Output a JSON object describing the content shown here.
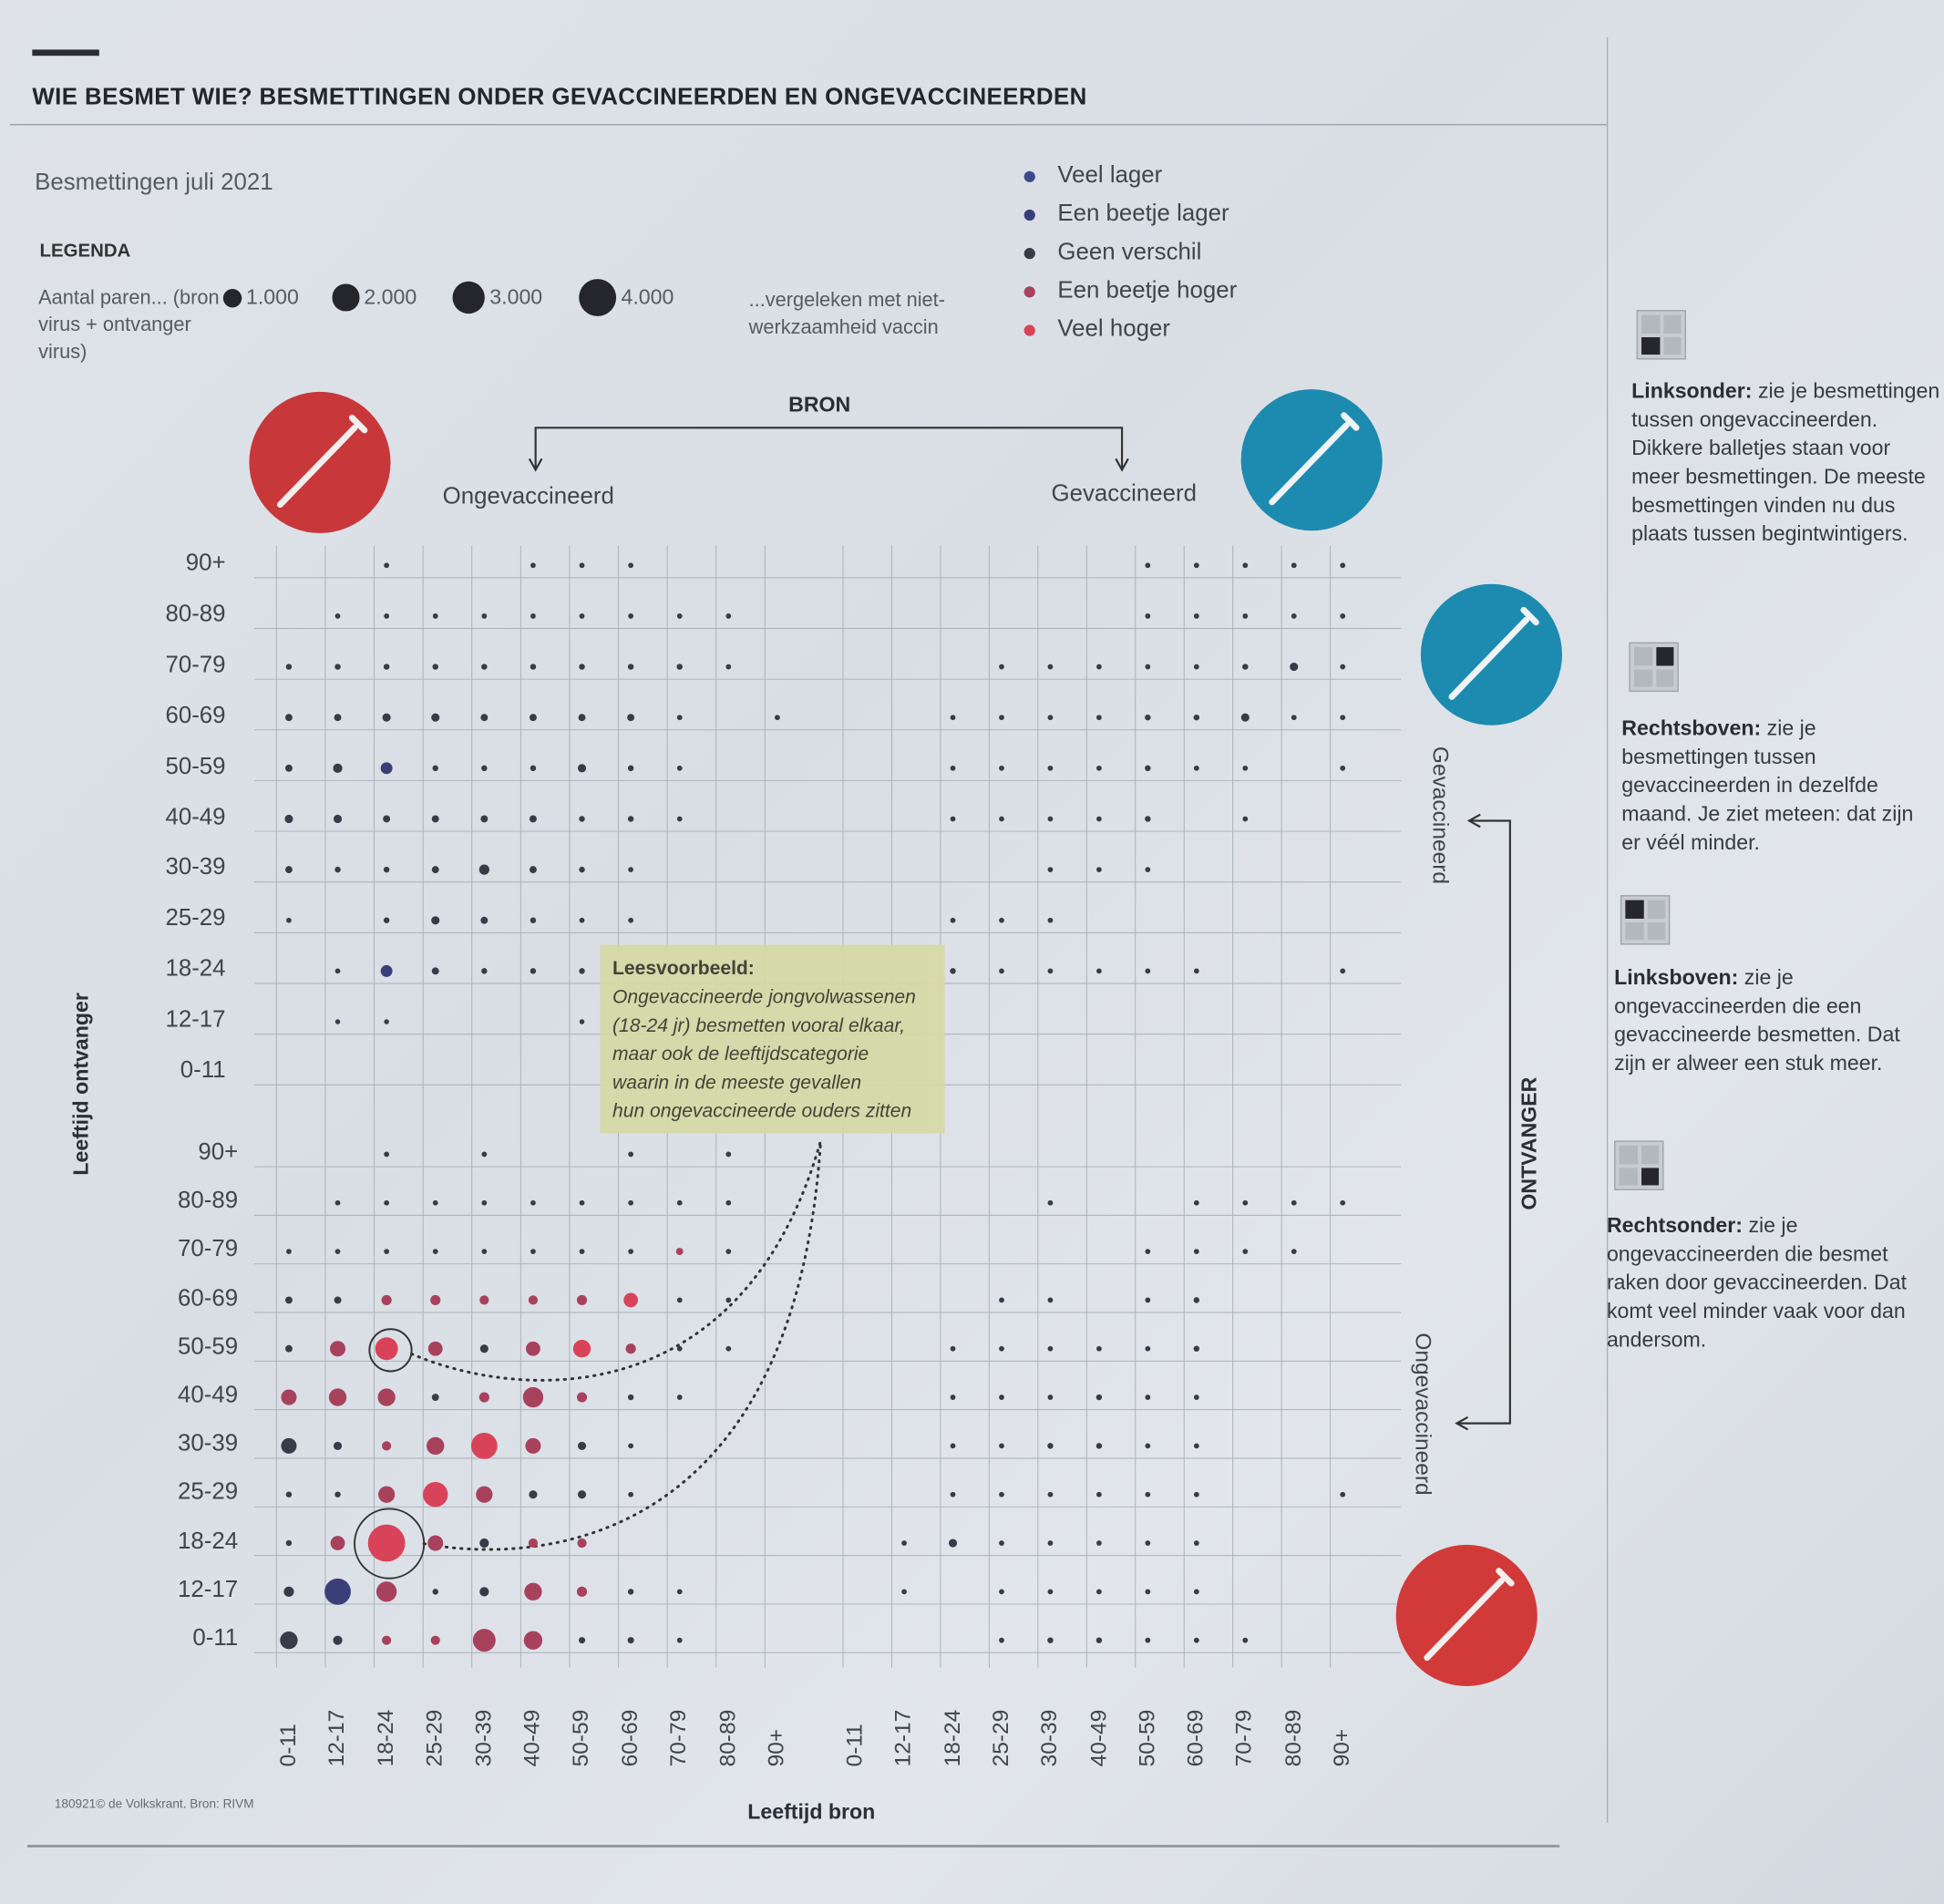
{
  "header": {
    "title": "WIE BESMET WIE? BESMETTINGEN ONDER GEVACCINEERDEN EN ONGEVACCINEERDEN",
    "subtitle": "Besmettingen juli 2021"
  },
  "legend": {
    "heading": "LEGENDA",
    "size_text": "Aantal paren... (bron virus + ontvanger virus)",
    "sizes": [
      {
        "label": "1.000",
        "value": 1000
      },
      {
        "label": "2.000",
        "value": 2000
      },
      {
        "label": "3.000",
        "value": 3000
      },
      {
        "label": "4.000",
        "value": 4000
      }
    ],
    "compare_text": "...vergeleken met niet-werkzaamheid vaccin",
    "categories": [
      {
        "label": "Veel lager",
        "color": "#3b4a8c"
      },
      {
        "label": "Een beetje lager",
        "color": "#3a3f78"
      },
      {
        "label": "Geen verschil",
        "color": "#3a3b48"
      },
      {
        "label": "Een beetje hoger",
        "color": "#a8425c"
      },
      {
        "label": "Veel hoger",
        "color": "#d9435a"
      }
    ]
  },
  "axes": {
    "source_title": "BRON",
    "source_unvacc": "Ongevaccineerd",
    "source_vacc": "Gevaccineerd",
    "recipient_title": "ONTVANGER",
    "recipient_vacc": "Gevaccineerd",
    "recipient_unvacc": "Ongevaccineerd",
    "ylabel": "Leeftijd ontvanger",
    "xlabel": "Leeftijd bron"
  },
  "note": {
    "heading": "Leesvoorbeeld:",
    "lines": [
      "Ongevaccineerde jongvolwassenen",
      "(18-24 jr) besmetten vooral elkaar,",
      "maar ook de leeftijdscategorie",
      "waarin in de meeste gevallen",
      "hun ongevaccineerde ouders zitten"
    ]
  },
  "side_panel": [
    {
      "title": "Linksonder:",
      "text": "zie je besmettingen tussen ongevaccineerden. Dikkere balletjes staan voor meer besmettingen. De meeste besmettingen vinden nu dus plaats tussen begintwintigers."
    },
    {
      "title": "Rechtsboven:",
      "text": "zie je besmettingen tussen gevaccineerden in dezelfde maand. Je ziet meteen: dat zijn er véél minder."
    },
    {
      "title": "Linksboven:",
      "text": "zie je ongevaccineerden die een gevaccineerde besmetten. Dat zijn er alweer een stuk meer."
    },
    {
      "title": "Rechtsonder:",
      "text": "zie je ongevaccineerden die besmet raken door gevaccineerden. Dat komt veel minder vaak voor dan andersom."
    }
  ],
  "credit": "180921© de Volkskrant. Bron: RIVM",
  "chart_data": {
    "type": "scatter",
    "title": "WIE BESMET WIE? BESMETTINGEN ONDER GEVACCINEERDEN EN ONGEVACCINEERDEN",
    "xlabel": "Leeftijd bron",
    "ylabel": "Leeftijd ontvanger",
    "age_groups": [
      "0-11",
      "12-17",
      "18-24",
      "25-29",
      "30-39",
      "40-49",
      "50-59",
      "60-69",
      "70-79",
      "80-89",
      "90+"
    ],
    "value_unit": "aantal paren (bron + ontvanger)",
    "note": "rows = recipient age (0-11 first), columns = source age (0-11 first); values approximate; category index into legend.categories",
    "quadrants": [
      {
        "name": "bron ongevaccineerd / ontvanger ongevaccineerd",
        "source": "Ongevaccineerd",
        "recipient": "Ongevaccineerd",
        "values": [
          [
            900,
            250,
            250,
            250,
            1500,
            1000,
            120,
            120,
            80,
            0,
            0
          ],
          [
            300,
            2000,
            1200,
            100,
            250,
            900,
            300,
            100,
            80,
            0,
            0
          ],
          [
            100,
            600,
            4000,
            700,
            250,
            250,
            250,
            0,
            0,
            0,
            0
          ],
          [
            100,
            100,
            800,
            1800,
            800,
            200,
            200,
            80,
            0,
            0,
            0
          ],
          [
            700,
            200,
            250,
            900,
            2000,
            700,
            200,
            80,
            0,
            0,
            0
          ],
          [
            700,
            900,
            900,
            150,
            300,
            1200,
            300,
            100,
            80,
            0,
            0
          ],
          [
            150,
            700,
            1500,
            600,
            200,
            600,
            900,
            300,
            80,
            80,
            0
          ],
          [
            150,
            150,
            300,
            300,
            250,
            250,
            300,
            600,
            80,
            80,
            0
          ],
          [
            80,
            80,
            80,
            80,
            80,
            80,
            80,
            80,
            150,
            80,
            0
          ],
          [
            0,
            80,
            80,
            80,
            80,
            80,
            80,
            80,
            80,
            80,
            0
          ],
          [
            0,
            0,
            80,
            0,
            80,
            0,
            0,
            80,
            0,
            80,
            0
          ]
        ],
        "categories": [
          [
            2,
            2,
            3,
            3,
            3,
            3,
            2,
            2,
            2,
            2,
            2
          ],
          [
            2,
            1,
            3,
            2,
            2,
            3,
            3,
            2,
            2,
            2,
            2
          ],
          [
            2,
            3,
            4,
            3,
            2,
            3,
            3,
            2,
            2,
            2,
            2
          ],
          [
            2,
            2,
            3,
            4,
            3,
            2,
            2,
            2,
            2,
            2,
            2
          ],
          [
            2,
            2,
            3,
            3,
            4,
            3,
            2,
            2,
            2,
            2,
            2
          ],
          [
            3,
            3,
            3,
            2,
            3,
            3,
            3,
            2,
            2,
            2,
            2
          ],
          [
            2,
            3,
            4,
            3,
            2,
            3,
            4,
            3,
            2,
            2,
            2
          ],
          [
            2,
            2,
            3,
            3,
            3,
            3,
            3,
            4,
            2,
            2,
            2
          ],
          [
            2,
            2,
            2,
            2,
            2,
            2,
            2,
            2,
            3,
            2,
            2
          ],
          [
            2,
            2,
            2,
            2,
            2,
            2,
            2,
            2,
            2,
            2,
            2
          ],
          [
            2,
            2,
            2,
            2,
            2,
            2,
            2,
            2,
            2,
            2,
            2
          ]
        ]
      },
      {
        "name": "bron ongevaccineerd / ontvanger gevaccineerd",
        "source": "Ongevaccineerd",
        "recipient": "Gevaccineerd",
        "values": [
          [
            0,
            0,
            0,
            0,
            0,
            0,
            0,
            0,
            0,
            0,
            0
          ],
          [
            0,
            60,
            60,
            0,
            0,
            0,
            60,
            0,
            0,
            0,
            0
          ],
          [
            0,
            80,
            400,
            150,
            100,
            100,
            100,
            80,
            0,
            0,
            0
          ],
          [
            80,
            0,
            100,
            200,
            150,
            100,
            80,
            80,
            0,
            0,
            0
          ],
          [
            150,
            100,
            100,
            150,
            300,
            150,
            100,
            80,
            0,
            0,
            0
          ],
          [
            200,
            200,
            150,
            150,
            150,
            150,
            100,
            100,
            80,
            0,
            0
          ],
          [
            150,
            250,
            400,
            100,
            100,
            100,
            200,
            100,
            80,
            0,
            0
          ],
          [
            150,
            150,
            200,
            200,
            150,
            150,
            150,
            150,
            80,
            0,
            80
          ],
          [
            100,
            100,
            100,
            100,
            100,
            100,
            100,
            100,
            100,
            80,
            0
          ],
          [
            0,
            80,
            80,
            80,
            80,
            80,
            80,
            80,
            80,
            80,
            0
          ],
          [
            0,
            0,
            80,
            0,
            0,
            80,
            80,
            80,
            0,
            0,
            0
          ]
        ],
        "default_category": 2,
        "exceptions": [
          [
            2,
            2,
            1
          ],
          [
            6,
            2,
            1
          ]
        ]
      },
      {
        "name": "bron gevaccineerd / ontvanger gevaccineerd",
        "source": "Gevaccineerd",
        "recipient": "Gevaccineerd",
        "values": [
          [
            0,
            0,
            0,
            0,
            0,
            0,
            0,
            0,
            0,
            0,
            0
          ],
          [
            0,
            0,
            0,
            0,
            0,
            0,
            0,
            0,
            0,
            0,
            0
          ],
          [
            0,
            0,
            100,
            80,
            80,
            80,
            80,
            80,
            0,
            0,
            80
          ],
          [
            0,
            0,
            80,
            80,
            80,
            0,
            0,
            0,
            0,
            0,
            0
          ],
          [
            0,
            0,
            0,
            0,
            80,
            80,
            80,
            0,
            0,
            0,
            0
          ],
          [
            0,
            0,
            80,
            80,
            80,
            80,
            100,
            0,
            80,
            0,
            0
          ],
          [
            0,
            0,
            80,
            80,
            80,
            80,
            100,
            80,
            80,
            0,
            80
          ],
          [
            0,
            0,
            80,
            80,
            80,
            80,
            100,
            100,
            200,
            80,
            80
          ],
          [
            0,
            0,
            0,
            80,
            80,
            80,
            80,
            80,
            100,
            200,
            80
          ],
          [
            0,
            0,
            0,
            0,
            0,
            0,
            80,
            80,
            80,
            80,
            80
          ],
          [
            0,
            0,
            0,
            0,
            0,
            0,
            80,
            80,
            80,
            80,
            80
          ]
        ],
        "default_category": 2,
        "exceptions": []
      },
      {
        "name": "bron gevaccineerd / ontvanger ongevaccineerd",
        "source": "Gevaccineerd",
        "recipient": "Ongevaccineerd",
        "values": [
          [
            0,
            0,
            0,
            80,
            100,
            100,
            80,
            80,
            80,
            0,
            0
          ],
          [
            0,
            80,
            0,
            80,
            80,
            80,
            80,
            80,
            0,
            0,
            0
          ],
          [
            0,
            80,
            200,
            80,
            80,
            80,
            80,
            80,
            0,
            0,
            0
          ],
          [
            0,
            0,
            80,
            80,
            80,
            80,
            80,
            80,
            0,
            0,
            80
          ],
          [
            0,
            0,
            80,
            80,
            100,
            100,
            80,
            80,
            0,
            0,
            0
          ],
          [
            0,
            0,
            80,
            80,
            80,
            100,
            80,
            80,
            0,
            0,
            0
          ],
          [
            0,
            0,
            80,
            80,
            80,
            80,
            80,
            100,
            0,
            0,
            0
          ],
          [
            0,
            0,
            0,
            80,
            80,
            0,
            80,
            100,
            0,
            0,
            0
          ],
          [
            0,
            0,
            0,
            0,
            0,
            0,
            80,
            80,
            80,
            80,
            0
          ],
          [
            0,
            0,
            0,
            0,
            80,
            0,
            0,
            80,
            80,
            80,
            80
          ],
          [
            0,
            0,
            0,
            0,
            0,
            0,
            0,
            0,
            0,
            0,
            0
          ]
        ],
        "default_category": 2,
        "exceptions": []
      }
    ]
  }
}
